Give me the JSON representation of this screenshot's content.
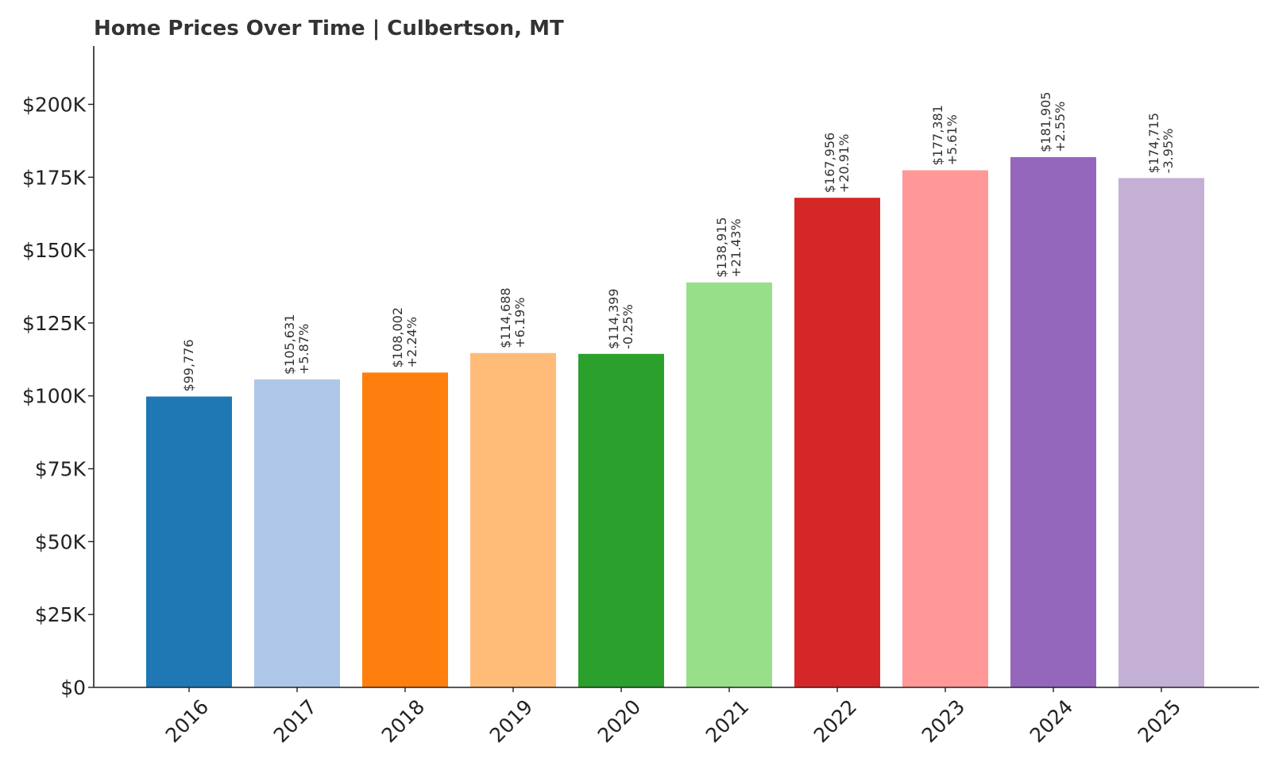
{
  "chart_data": {
    "type": "bar",
    "title": "Home Prices Over Time | Culbertson, MT",
    "xlabel": "",
    "ylabel": "",
    "categories": [
      "2016",
      "2017",
      "2018",
      "2019",
      "2020",
      "2021",
      "2022",
      "2023",
      "2024",
      "2025"
    ],
    "values": [
      99776,
      105631,
      108002,
      114688,
      114399,
      138915,
      167956,
      177381,
      181905,
      174715
    ],
    "value_labels": [
      "$99,776",
      "$105,631",
      "$108,002",
      "$114,688",
      "$114,399",
      "$138,915",
      "$167,956",
      "$177,381",
      "$181,905",
      "$174,715"
    ],
    "change_labels": [
      "",
      "+5.87%",
      "+2.24%",
      "+6.19%",
      "-0.25%",
      "+21.43%",
      "+20.91%",
      "+5.61%",
      "+2.55%",
      "-3.95%"
    ],
    "colors": [
      "#1f77b4",
      "#aec7e8",
      "#ff7f0e",
      "#ffbb78",
      "#2ca02c",
      "#98df8a",
      "#d62728",
      "#ff9896",
      "#9467bd",
      "#c5b0d5"
    ],
    "ylim": [
      0,
      220000
    ],
    "yticks": [
      0,
      25000,
      50000,
      75000,
      100000,
      125000,
      150000,
      175000,
      200000
    ],
    "ytick_labels": [
      "$0",
      "$25K",
      "$50K",
      "$75K",
      "$100K",
      "$125K",
      "$150K",
      "$175K",
      "$200K"
    ],
    "grid": false,
    "legend": "none"
  }
}
